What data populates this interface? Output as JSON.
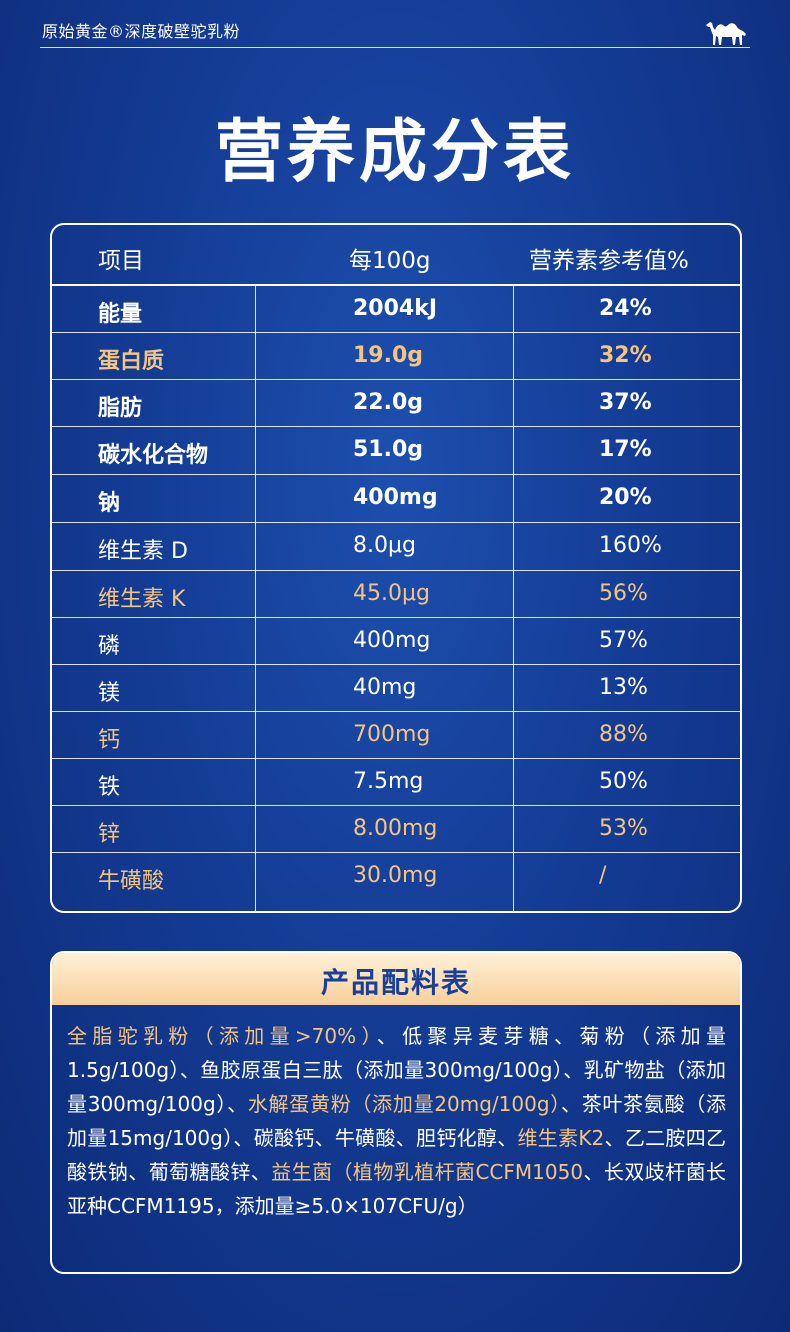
{
  "brand": {
    "text": "原始黄金®深度破壁驼乳粉",
    "logo_icon": "camel-icon"
  },
  "title": "营养成分表",
  "table": {
    "headers": [
      "项目",
      "每100g",
      "营养素参考值%"
    ],
    "rows": [
      {
        "item": "能量",
        "per100g": "2004kJ",
        "nrv": "24%",
        "style": "bold-white"
      },
      {
        "item": "蛋白质",
        "per100g": "19.0g",
        "nrv": "32%",
        "style": "bold-gold"
      },
      {
        "item": "脂肪",
        "per100g": "22.0g",
        "nrv": "37%",
        "style": "bold-white"
      },
      {
        "item": "碳水化合物",
        "per100g": "51.0g",
        "nrv": "17%",
        "style": "bold-white"
      },
      {
        "item": "钠",
        "per100g": "400mg",
        "nrv": "20%",
        "style": "bold-white"
      },
      {
        "item": "维生素 D",
        "per100g": "8.0μg",
        "nrv": "160%",
        "style": "white"
      },
      {
        "item": "维生素 K",
        "per100g": "45.0μg",
        "nrv": "56%",
        "style": "gold"
      },
      {
        "item": "磷",
        "per100g": "400mg",
        "nrv": "57%",
        "style": "white"
      },
      {
        "item": "镁",
        "per100g": "40mg",
        "nrv": "13%",
        "style": "white"
      },
      {
        "item": "钙",
        "per100g": "700mg",
        "nrv": "88%",
        "style": "gold"
      },
      {
        "item": "铁",
        "per100g": "7.5mg",
        "nrv": "50%",
        "style": "white"
      },
      {
        "item": "锌",
        "per100g": "8.00mg",
        "nrv": "53%",
        "style": "gold"
      },
      {
        "item": "牛磺酸",
        "per100g": "30.0mg",
        "nrv": "/",
        "style": "gold"
      }
    ]
  },
  "ingredients": {
    "title": "产品配料表",
    "segments": [
      {
        "text": "全脂驼乳粉（添加量>70%）",
        "highlight": true
      },
      {
        "text": "、低聚异麦芽糖、菊粉（添加量1.5g/100g）、鱼胶原蛋白三肽（添加量300mg/100g）、乳矿物盐（添加量300mg/100g）、",
        "highlight": false
      },
      {
        "text": "水解蛋黄粉（添加量20mg/100g）",
        "highlight": true
      },
      {
        "text": "、茶叶茶氨酸（添加量15mg/100g）、碳酸钙、牛磺酸、胆钙化醇、",
        "highlight": false
      },
      {
        "text": "维生素K2",
        "highlight": true
      },
      {
        "text": "、乙二胺四乙酸铁钠、葡萄糖酸锌、",
        "highlight": false
      },
      {
        "text": "益生菌（植物乳植杆菌CCFM1050",
        "highlight": true
      },
      {
        "text": "、长双歧杆菌长亚种CCFM1195，添加量≥5.0×107CFU/g）",
        "highlight": false
      }
    ]
  },
  "colors": {
    "background": "#143c95",
    "highlight": "#f5c57e",
    "header_band": "#f7cf9a"
  }
}
